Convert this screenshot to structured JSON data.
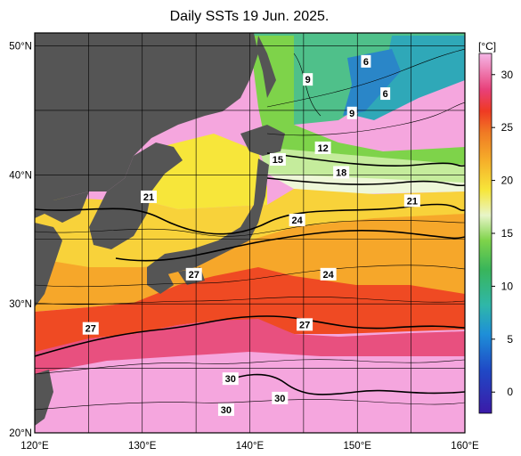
{
  "title": "Daily SSTs 19 Jun. 2025.",
  "colorbar": {
    "unit": "[°C]",
    "ticks": [
      "30",
      "25",
      "20",
      "15",
      "10",
      "5",
      "0"
    ],
    "range": [
      -2,
      32
    ]
  },
  "lat_labels": [
    "50°N",
    "40°N",
    "30°N",
    "20°N"
  ],
  "lon_labels": [
    "120°E",
    "130°E",
    "140°E",
    "150°E",
    "160°E"
  ],
  "contour_labels": [
    {
      "text": "6",
      "lon": 150.8,
      "lat": 48.8
    },
    {
      "text": "9",
      "lon": 145.4,
      "lat": 47.4
    },
    {
      "text": "6",
      "lon": 152.6,
      "lat": 46.3
    },
    {
      "text": "9",
      "lon": 149.5,
      "lat": 44.8
    },
    {
      "text": "12",
      "lon": 146.8,
      "lat": 42.1
    },
    {
      "text": "15",
      "lon": 142.6,
      "lat": 41.2
    },
    {
      "text": "18",
      "lon": 148.5,
      "lat": 40.2
    },
    {
      "text": "21",
      "lon": 130.6,
      "lat": 38.3
    },
    {
      "text": "21",
      "lon": 155.1,
      "lat": 38.0
    },
    {
      "text": "24",
      "lon": 144.4,
      "lat": 36.5
    },
    {
      "text": "24",
      "lon": 147.3,
      "lat": 32.3
    },
    {
      "text": "27",
      "lon": 134.8,
      "lat": 32.3
    },
    {
      "text": "27",
      "lon": 125.2,
      "lat": 28.1
    },
    {
      "text": "27",
      "lon": 145.1,
      "lat": 28.4
    },
    {
      "text": "30",
      "lon": 138.2,
      "lat": 24.2
    },
    {
      "text": "30",
      "lon": 142.8,
      "lat": 22.7
    },
    {
      "text": "30",
      "lon": 137.8,
      "lat": 21.8
    }
  ],
  "colors": {
    "land": "#555555",
    "colorbar_stops": [
      "#3b1aa8",
      "#1e6fd8",
      "#2fb7c9",
      "#39b55a",
      "#7ed34a",
      "#e8f5c8",
      "#f7e63a",
      "#f6b02a",
      "#ef4a23",
      "#e0407a",
      "#f5a6de"
    ]
  }
}
